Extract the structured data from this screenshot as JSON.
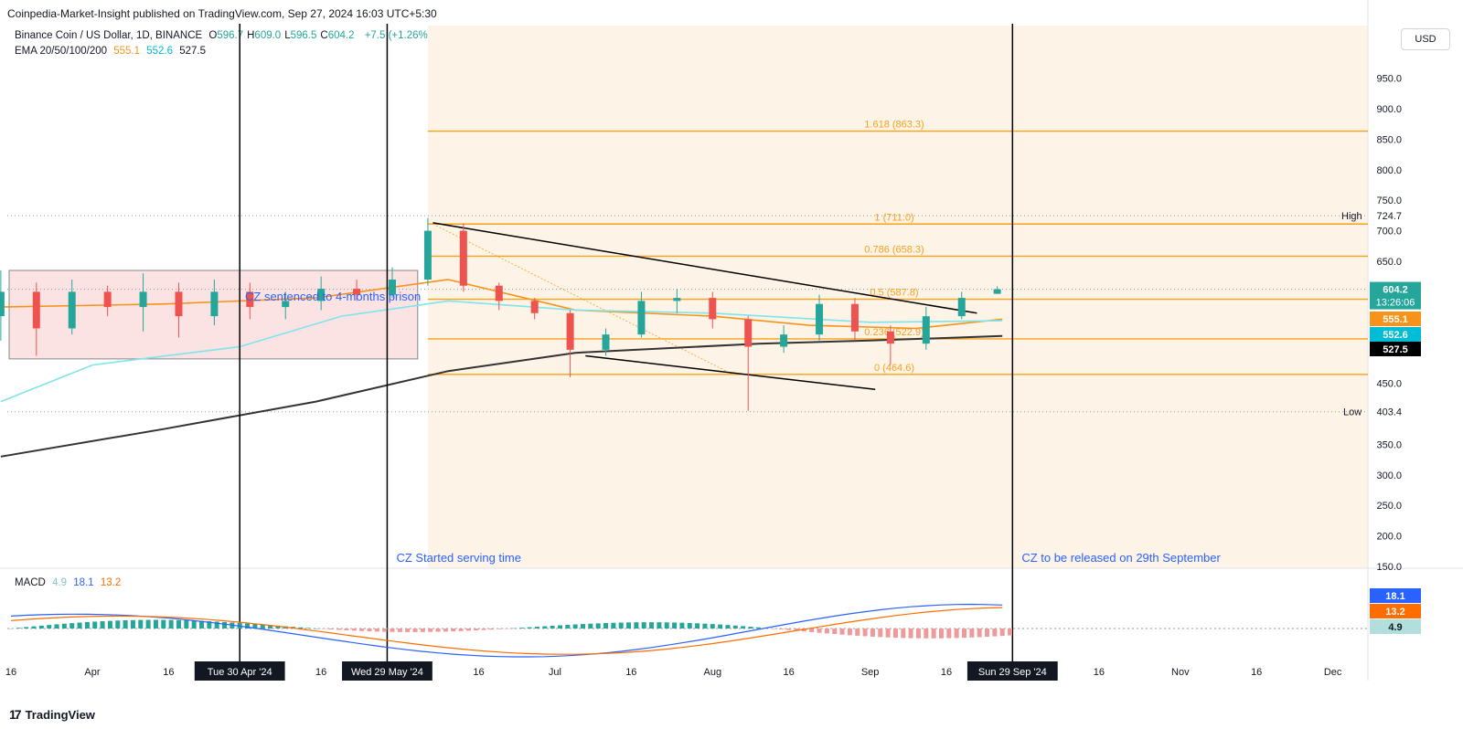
{
  "publisher_line": "Coinpedia-Market-Insight published on TradingView.com, Sep 27, 2024 16:03 UTC+5:30",
  "footer_brand": "TradingView",
  "currency_button": "USD",
  "legend": {
    "symbol": "Binance Coin / US Dollar, 1D, BINANCE",
    "ohlc": [
      {
        "k": "O",
        "v": "596.7"
      },
      {
        "k": "H",
        "v": "609.0"
      },
      {
        "k": "L",
        "v": "596.5"
      },
      {
        "k": "C",
        "v": "604.2"
      }
    ],
    "change": "+7.5 (+1.26%)",
    "ema_label": "EMA 20/50/100/200",
    "ema_values": [
      "555.1",
      "552.6",
      "527.5"
    ],
    "macd_label": "MACD",
    "macd_values": [
      "4.9",
      "18.1",
      "13.2"
    ]
  },
  "colors": {
    "up": "#26a69a",
    "down": "#ef5350",
    "fib": "#f7a21b",
    "ema_orange": "#f7931a",
    "ema_cyan": "#7fe4ec",
    "ema_dark": "#333333",
    "macd_line": "#2962ff",
    "signal_line": "#ff6d00",
    "annotation": "#2962ff",
    "box_fill": "#fbe3e3",
    "shade_fill": "#fdf3e7"
  },
  "annotations": {
    "started": "CZ Started serving time",
    "released": "CZ to be released on 29th September",
    "sentenced": "CZ sentenced to 4-months prison"
  },
  "price_labels": {
    "high_tag": "High",
    "high_value": "724.7",
    "low_tag": "Low",
    "low_value": "403.4",
    "last": "604.2",
    "countdown": "13:26:06",
    "ema_a": "555.1",
    "ema_b": "552.6",
    "ema_c": "527.5",
    "macd_a": "18.1",
    "macd_b": "13.2",
    "macd_c": "4.9"
  },
  "chart_data": {
    "type": "candlestick",
    "title": "Binance Coin / US Dollar, 1D, BINANCE",
    "ylim": [
      120,
      1000
    ],
    "yticks": [
      950,
      900,
      850,
      800,
      750,
      700,
      650,
      450,
      350,
      300,
      250,
      200,
      150
    ],
    "ytick_labels": [
      "950.0",
      "900.0",
      "850.0",
      "800.0",
      "750.0",
      "700.0",
      "650.0",
      "450.0",
      "350.0",
      "300.0",
      "250.0",
      "200.0",
      "150.0"
    ],
    "xticks": [
      {
        "label": "16",
        "date": "2024-03-16"
      },
      {
        "label": "Apr",
        "date": "2024-04-01"
      },
      {
        "label": "16",
        "date": "2024-04-16"
      },
      {
        "label": "Tue 30 Apr '24",
        "date": "2024-04-30",
        "highlight": true
      },
      {
        "label": "16",
        "date": "2024-05-16"
      },
      {
        "label": "Wed 29 May '24",
        "date": "2024-05-29",
        "highlight": true
      },
      {
        "label": "16",
        "date": "2024-06-16"
      },
      {
        "label": "Jul",
        "date": "2024-07-01"
      },
      {
        "label": "16",
        "date": "2024-07-16"
      },
      {
        "label": "Aug",
        "date": "2024-08-01"
      },
      {
        "label": "16",
        "date": "2024-08-16"
      },
      {
        "label": "Sep",
        "date": "2024-09-01"
      },
      {
        "label": "16",
        "date": "2024-09-16"
      },
      {
        "label": "Sun 29 Sep '24",
        "date": "2024-09-29",
        "highlight": true
      },
      {
        "label": "16",
        "date": "2024-10-16"
      },
      {
        "label": "Nov",
        "date": "2024-11-01"
      },
      {
        "label": "16",
        "date": "2024-11-16"
      },
      {
        "label": "Dec",
        "date": "2024-12-01"
      }
    ],
    "candles_weekly_approx": [
      {
        "date": "2024-03-14",
        "o": 560,
        "h": 635,
        "l": 520,
        "c": 600
      },
      {
        "date": "2024-03-21",
        "o": 600,
        "h": 615,
        "l": 495,
        "c": 540
      },
      {
        "date": "2024-03-28",
        "o": 540,
        "h": 620,
        "l": 530,
        "c": 600
      },
      {
        "date": "2024-04-04",
        "o": 600,
        "h": 610,
        "l": 560,
        "c": 575
      },
      {
        "date": "2024-04-11",
        "o": 575,
        "h": 630,
        "l": 535,
        "c": 600
      },
      {
        "date": "2024-04-18",
        "o": 600,
        "h": 615,
        "l": 525,
        "c": 560
      },
      {
        "date": "2024-04-25",
        "o": 560,
        "h": 620,
        "l": 545,
        "c": 600
      },
      {
        "date": "2024-05-02",
        "o": 600,
        "h": 615,
        "l": 555,
        "c": 575
      },
      {
        "date": "2024-05-09",
        "o": 575,
        "h": 600,
        "l": 555,
        "c": 585
      },
      {
        "date": "2024-05-16",
        "o": 585,
        "h": 625,
        "l": 570,
        "c": 605
      },
      {
        "date": "2024-05-23",
        "o": 605,
        "h": 620,
        "l": 585,
        "c": 595
      },
      {
        "date": "2024-05-30",
        "o": 595,
        "h": 640,
        "l": 590,
        "c": 620
      },
      {
        "date": "2024-06-06",
        "o": 620,
        "h": 721,
        "l": 610,
        "c": 700
      },
      {
        "date": "2024-06-13",
        "o": 700,
        "h": 712,
        "l": 600,
        "c": 610
      },
      {
        "date": "2024-06-20",
        "o": 610,
        "h": 615,
        "l": 570,
        "c": 585
      },
      {
        "date": "2024-06-27",
        "o": 585,
        "h": 590,
        "l": 555,
        "c": 565
      },
      {
        "date": "2024-07-04",
        "o": 565,
        "h": 570,
        "l": 460,
        "c": 505
      },
      {
        "date": "2024-07-11",
        "o": 505,
        "h": 540,
        "l": 495,
        "c": 530
      },
      {
        "date": "2024-07-18",
        "o": 530,
        "h": 600,
        "l": 525,
        "c": 585
      },
      {
        "date": "2024-07-25",
        "o": 585,
        "h": 605,
        "l": 565,
        "c": 590
      },
      {
        "date": "2024-08-01",
        "o": 590,
        "h": 600,
        "l": 540,
        "c": 555
      },
      {
        "date": "2024-08-08",
        "o": 555,
        "h": 560,
        "l": 405,
        "c": 510
      },
      {
        "date": "2024-08-15",
        "o": 510,
        "h": 545,
        "l": 500,
        "c": 530
      },
      {
        "date": "2024-08-22",
        "o": 530,
        "h": 595,
        "l": 520,
        "c": 580
      },
      {
        "date": "2024-08-29",
        "o": 580,
        "h": 590,
        "l": 520,
        "c": 535
      },
      {
        "date": "2024-09-05",
        "o": 535,
        "h": 545,
        "l": 480,
        "c": 515
      },
      {
        "date": "2024-09-12",
        "o": 515,
        "h": 575,
        "l": 505,
        "c": 560
      },
      {
        "date": "2024-09-19",
        "o": 560,
        "h": 600,
        "l": 555,
        "c": 590
      },
      {
        "date": "2024-09-26",
        "o": 596.7,
        "h": 609.0,
        "l": 596.5,
        "c": 604.2
      }
    ],
    "fibonacci": [
      {
        "label": "1.618 (863.3)",
        "value": 863.3
      },
      {
        "label": "1 (711.0)",
        "value": 711.0
      },
      {
        "label": "0.786 (658.3)",
        "value": 658.3
      },
      {
        "label": "0.5 (587.8)",
        "value": 587.8
      },
      {
        "label": "0.236 (522.9)",
        "value": 522.9
      },
      {
        "label": "0 (464.6)",
        "value": 464.6
      }
    ],
    "high": 724.7,
    "low": 403.4,
    "ema_series": [
      {
        "name": "EMA 20",
        "points": [
          [
            "2024-03-14",
            575
          ],
          [
            "2024-04-15",
            580
          ],
          [
            "2024-05-15",
            590
          ],
          [
            "2024-06-10",
            620
          ],
          [
            "2024-07-05",
            570
          ],
          [
            "2024-08-01",
            560
          ],
          [
            "2024-08-20",
            545
          ],
          [
            "2024-09-10",
            540
          ],
          [
            "2024-09-27",
            555.1
          ]
        ]
      },
      {
        "name": "EMA 50",
        "points": [
          [
            "2024-03-14",
            420
          ],
          [
            "2024-04-01",
            480
          ],
          [
            "2024-04-30",
            510
          ],
          [
            "2024-05-20",
            560
          ],
          [
            "2024-06-10",
            585
          ],
          [
            "2024-07-05",
            570
          ],
          [
            "2024-08-01",
            565
          ],
          [
            "2024-09-01",
            550
          ],
          [
            "2024-09-27",
            552.6
          ]
        ]
      },
      {
        "name": "EMA 200",
        "points": [
          [
            "2024-03-14",
            330
          ],
          [
            "2024-04-15",
            375
          ],
          [
            "2024-05-15",
            420
          ],
          [
            "2024-06-10",
            470
          ],
          [
            "2024-07-05",
            500
          ],
          [
            "2024-08-10",
            515
          ],
          [
            "2024-09-01",
            520
          ],
          [
            "2024-09-27",
            527.5
          ]
        ]
      }
    ],
    "triangle": {
      "upper": [
        [
          "2024-06-07",
          713
        ],
        [
          "2024-09-22",
          565
        ]
      ],
      "lower": [
        [
          "2024-07-07",
          495
        ],
        [
          "2024-09-02",
          440
        ]
      ]
    },
    "macd": {
      "values": {
        "histogram": 4.9,
        "macd": 18.1,
        "signal": 13.2
      }
    }
  }
}
